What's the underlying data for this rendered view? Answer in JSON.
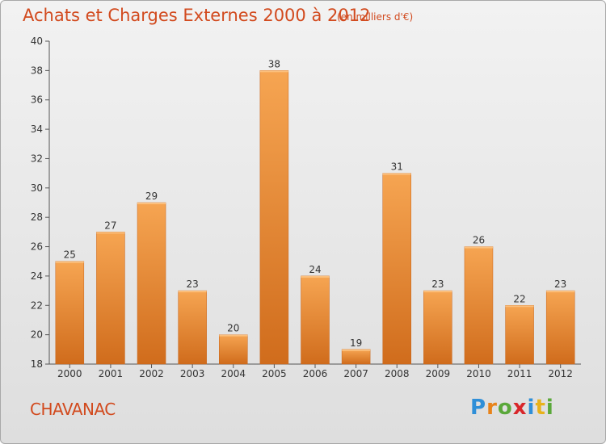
{
  "header": {
    "title": "Achats et Charges Externes 2000 à 2012",
    "subtitle": "(en milliers d'€)"
  },
  "footer": {
    "commune": "CHAVANAC",
    "logo_text": "Proxiti"
  },
  "colors": {
    "title": "#d24a1e",
    "bar_top": "#f6a552",
    "bar_bottom": "#d06c1c",
    "logo": [
      "#2f8fd8",
      "#e8831a",
      "#5aa83a",
      "#d8262a",
      "#2f8fd8",
      "#e8b21a",
      "#5aa83a"
    ]
  },
  "chart_data": {
    "type": "bar",
    "categories": [
      "2000",
      "2001",
      "2002",
      "2003",
      "2004",
      "2005",
      "2006",
      "2007",
      "2008",
      "2009",
      "2010",
      "2011",
      "2012"
    ],
    "values": [
      25,
      27,
      29,
      23,
      20,
      38,
      24,
      19,
      31,
      23,
      26,
      22,
      23
    ],
    "ylim": [
      18,
      40
    ],
    "yticks": [
      18,
      20,
      22,
      24,
      26,
      28,
      30,
      32,
      34,
      36,
      38,
      40
    ],
    "grid": false,
    "legend": "none"
  }
}
